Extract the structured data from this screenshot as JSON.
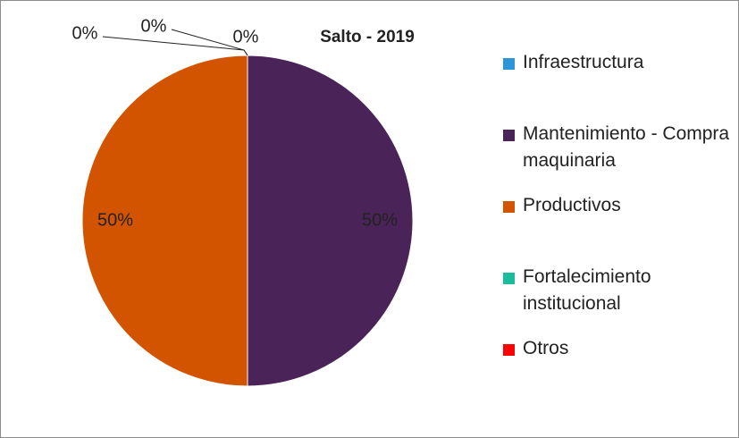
{
  "chart_data": {
    "type": "pie",
    "title": "Salto - 2019",
    "categories": [
      "Infraestructura",
      "Mantenimiento - Compra maquinaria",
      "Productivos",
      "Fortalecimiento institucional",
      "Otros"
    ],
    "values": [
      0,
      50,
      50,
      0,
      0
    ],
    "value_labels": [
      "0%",
      "50%",
      "50%",
      "0%",
      "0%"
    ],
    "colors": [
      "#2e96d8",
      "#4a2358",
      "#d35400",
      "#1abc9c",
      "#ff0000"
    ],
    "legend": "right"
  }
}
